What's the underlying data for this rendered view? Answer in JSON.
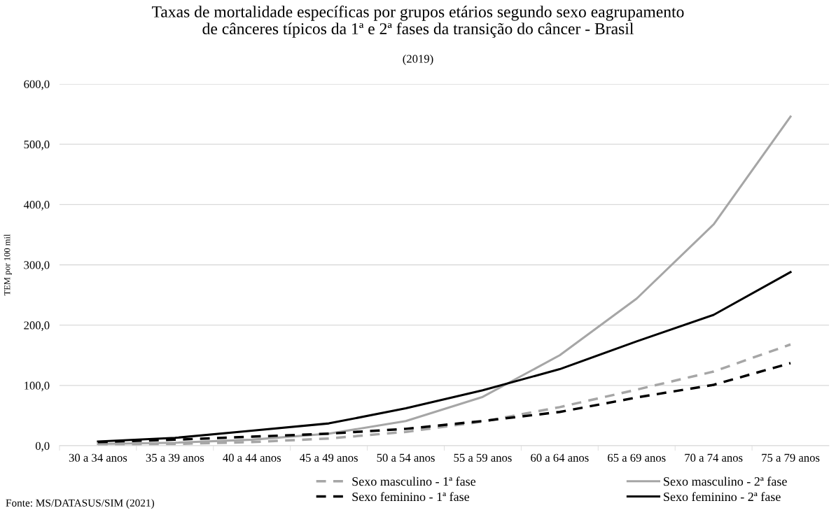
{
  "chart_data": {
    "type": "line",
    "title": "Taxas de mortalidade específicas por grupos etários segundo sexo eagrupamento\nde cânceres típicos da 1ª e 2ª fases da transição do câncer - Brasil",
    "subtitle": "(2019)",
    "ylabel": "TEM por 100 mil",
    "categories": [
      "30 a 34 anos",
      "35 a 39 anos",
      "40 a 44 anos",
      "45 a 49 anos",
      "50 a 54 anos",
      "55 a 59 anos",
      "60 a 64 anos",
      "65 a 69 anos",
      "70 a 74 anos",
      "75 a 79 anos"
    ],
    "series": [
      {
        "name": "Sexo masculino - 1ª fase",
        "color": "#a6a6a6",
        "line_style": "dashed",
        "values": [
          2,
          3,
          6,
          12,
          23,
          40,
          64,
          93,
          123,
          168
        ]
      },
      {
        "name": "Sexo masculino - 2ª fase",
        "color": "#a6a6a6",
        "line_style": "solid",
        "values": [
          3,
          5,
          10,
          20,
          41,
          81,
          150,
          244,
          367,
          546
        ]
      },
      {
        "name": "Sexo feminino - 1ª fase",
        "color": "#000000",
        "line_style": "dashed",
        "values": [
          6,
          10,
          15,
          20,
          28,
          41,
          56,
          80,
          101,
          137
        ]
      },
      {
        "name": "Sexo feminino - 2ª fase",
        "color": "#000000",
        "line_style": "solid",
        "values": [
          7,
          13,
          25,
          37,
          62,
          92,
          127,
          173,
          217,
          288
        ]
      }
    ],
    "ylim": [
      0,
      600
    ],
    "yticks": [
      {
        "value": 0,
        "label": "0,0"
      },
      {
        "value": 100,
        "label": "100,0"
      },
      {
        "value": 200,
        "label": "200,0"
      },
      {
        "value": 300,
        "label": "300,0"
      },
      {
        "value": 400,
        "label": "400,0"
      },
      {
        "value": 500,
        "label": "500,0"
      },
      {
        "value": 600,
        "label": "600,0"
      }
    ],
    "grid": "y",
    "legend": "bottom",
    "marker": "none",
    "annotations": [
      "Fonte: MS/DATASUS/SIM (2021)"
    ]
  }
}
